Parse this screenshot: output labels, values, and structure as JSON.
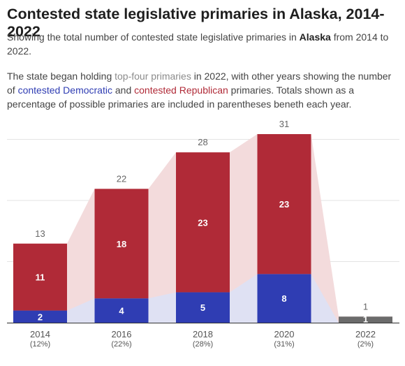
{
  "title": "Contested state legislative primaries in Alaska, 2014-2022",
  "subtitle": {
    "before": "Showing the total number of contested state legislative primaries in ",
    "state": "Alaska",
    "after": " from 2014 to 2022."
  },
  "note": {
    "p1": "The state began holding ",
    "topfour": "top-four primaries",
    "p2": " in 2022, with other years showing the number of ",
    "dem": "contested Democratic",
    "p3": " and ",
    "rep": "contested Republican",
    "p4": " primaries. Totals shown as a percentage of possible primaries are included in parentheses beneth each year."
  },
  "colors": {
    "democratic": "#2f3db3",
    "republican": "#b02a37",
    "top_four": "#6b6b6b",
    "dem_area": "#dfe1f3",
    "rep_area": "#f3dbdc",
    "text": "#555555"
  },
  "chart_data": {
    "type": "bar",
    "stacked": true,
    "categories": [
      "2014",
      "2016",
      "2018",
      "2020",
      "2022"
    ],
    "percent_labels": [
      "(12%)",
      "(22%)",
      "(28%)",
      "(31%)",
      "(2%)"
    ],
    "series": [
      {
        "name": "contested Democratic",
        "values": [
          2,
          4,
          5,
          8,
          0
        ]
      },
      {
        "name": "contested Republican",
        "values": [
          11,
          18,
          23,
          23,
          0
        ]
      },
      {
        "name": "top-four primaries",
        "values": [
          0,
          0,
          0,
          0,
          1
        ]
      }
    ],
    "totals": [
      13,
      22,
      28,
      31,
      1
    ],
    "ylim": [
      0,
      31
    ],
    "grid": true
  }
}
